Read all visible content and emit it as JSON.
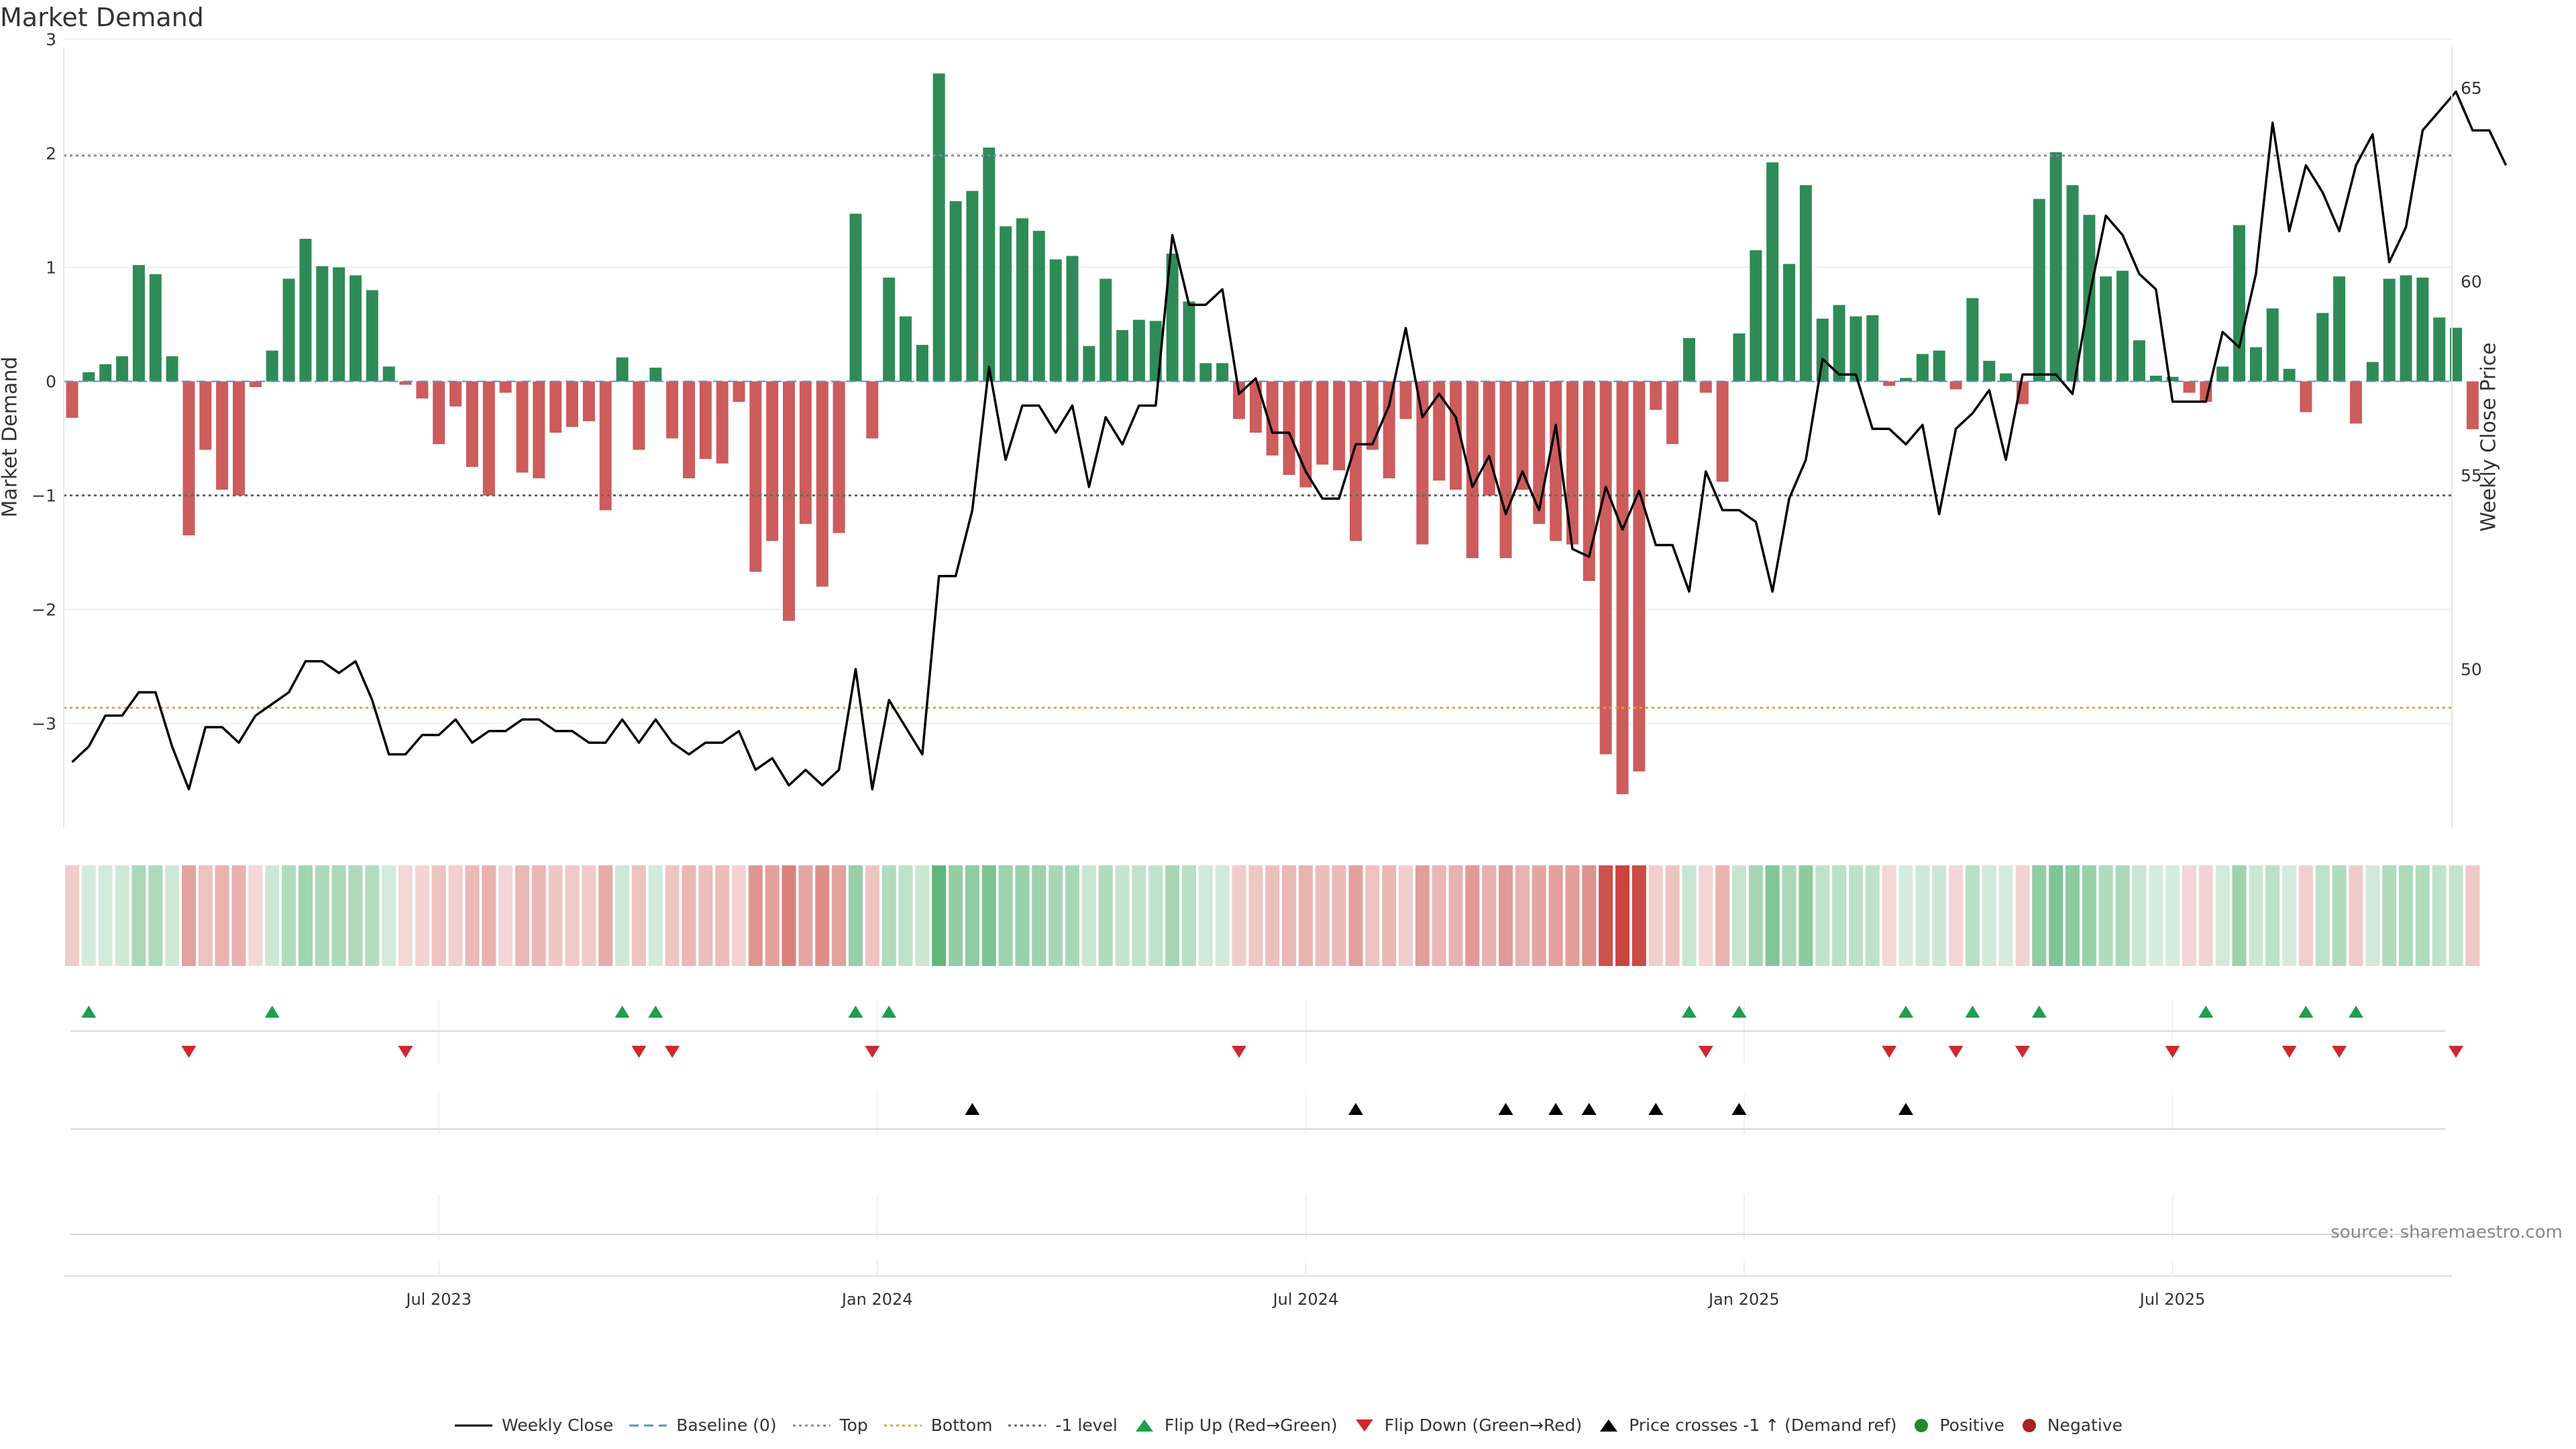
{
  "chart_data": {
    "type": "bar+line",
    "title": "Market Demand",
    "ylabel_left": "Market Demand",
    "ylabel_right": "Weekly Close Price",
    "ylim_left": [
      -3.95,
      3.05
    ],
    "ylim_right": [
      45.8,
      66.4
    ],
    "left_ticks": [
      "3",
      "2",
      "1",
      "0",
      "−1",
      "−2",
      "−3"
    ],
    "left_tick_values": [
      3,
      2,
      1,
      0,
      -1,
      -2,
      -3
    ],
    "right_ticks": [
      "65",
      "60",
      "55",
      "50"
    ],
    "right_tick_values": [
      65,
      60,
      55,
      50
    ],
    "reference_lines": {
      "top": 1.98,
      "bottom_price": 49.0,
      "minus_one": -1.0,
      "baseline": 0
    },
    "x_ticks": [
      "Jul 2023",
      "Jan 2024",
      "Jul 2024",
      "Jan 2025",
      "Jul 2025"
    ],
    "x_tick_index": [
      22,
      48.3,
      74,
      100.3,
      126
    ],
    "demand": [
      -0.32,
      0.08,
      0.15,
      0.22,
      1.02,
      0.94,
      0.22,
      -1.35,
      -0.6,
      -0.95,
      -1.0,
      -0.05,
      0.27,
      0.9,
      1.25,
      1.01,
      1.0,
      0.93,
      0.8,
      0.13,
      -0.03,
      -0.15,
      -0.55,
      -0.22,
      -0.75,
      -1.0,
      -0.1,
      -0.8,
      -0.85,
      -0.45,
      -0.4,
      -0.35,
      -1.13,
      0.21,
      -0.6,
      0.12,
      -0.5,
      -0.85,
      -0.68,
      -0.72,
      -0.18,
      -1.67,
      -1.4,
      -2.1,
      -1.25,
      -1.8,
      -1.33,
      1.47,
      -0.5,
      0.91,
      0.57,
      0.32,
      2.7,
      1.58,
      1.67,
      2.05,
      1.36,
      1.43,
      1.32,
      1.07,
      1.1,
      0.31,
      0.9,
      0.45,
      0.54,
      0.53,
      1.12,
      0.7,
      0.16,
      0.16,
      -0.33,
      -0.45,
      -0.65,
      -0.82,
      -0.93,
      -0.73,
      -0.78,
      -1.4,
      -0.6,
      -0.85,
      -0.33,
      -1.43,
      -0.87,
      -0.95,
      -1.55,
      -1.0,
      -1.55,
      -0.95,
      -1.25,
      -1.4,
      -1.43,
      -1.75,
      -3.27,
      -3.62,
      -3.42,
      -0.25,
      -0.55,
      0.38,
      -0.1,
      -0.88,
      0.42,
      1.15,
      1.92,
      1.03,
      1.72,
      0.55,
      0.67,
      0.57,
      0.58,
      -0.04,
      0.03,
      0.24,
      0.27,
      -0.07,
      0.73,
      0.18,
      0.07,
      -0.2,
      1.6,
      2.01,
      1.72,
      1.46,
      0.92,
      0.97,
      0.36,
      0.05,
      0.04,
      -0.1,
      -0.18,
      0.13,
      1.37,
      0.3,
      0.64,
      0.11,
      -0.27,
      0.6,
      0.92,
      -0.37,
      0.17,
      0.9,
      0.93,
      0.91,
      0.56,
      0.47,
      -0.42
    ],
    "price": [
      47.6,
      48.0,
      48.8,
      48.8,
      49.4,
      49.4,
      48.0,
      46.9,
      48.5,
      48.5,
      48.1,
      48.8,
      49.1,
      49.4,
      50.2,
      50.2,
      49.9,
      50.2,
      49.2,
      47.8,
      47.8,
      48.3,
      48.3,
      48.7,
      48.1,
      48.4,
      48.4,
      48.7,
      48.7,
      48.4,
      48.4,
      48.1,
      48.1,
      48.7,
      48.1,
      48.7,
      48.1,
      47.8,
      48.1,
      48.1,
      48.4,
      47.4,
      47.7,
      47.0,
      47.4,
      47.0,
      47.4,
      50.0,
      46.9,
      49.2,
      48.5,
      47.8,
      52.4,
      52.4,
      54.1,
      57.8,
      55.4,
      56.8,
      56.8,
      56.1,
      56.8,
      54.7,
      56.5,
      55.8,
      56.8,
      56.8,
      61.2,
      59.4,
      59.4,
      59.8,
      57.1,
      57.5,
      56.1,
      56.1,
      55.1,
      54.4,
      54.4,
      55.8,
      55.8,
      56.8,
      58.8,
      56.5,
      57.1,
      56.5,
      54.7,
      55.5,
      54.0,
      55.1,
      54.1,
      56.3,
      53.1,
      52.9,
      54.7,
      53.6,
      54.6,
      53.2,
      53.2,
      52.0,
      55.1,
      54.1,
      54.1,
      53.8,
      52.0,
      54.4,
      55.4,
      58.0,
      57.6,
      57.6,
      56.2,
      56.2,
      55.8,
      56.3,
      54.0,
      56.2,
      56.6,
      57.2,
      55.4,
      57.6,
      57.6,
      57.6,
      57.1,
      59.6,
      61.7,
      61.2,
      60.2,
      59.8,
      56.9,
      56.9,
      56.9,
      58.7,
      58.3,
      60.2,
      64.1,
      61.3,
      63.0,
      62.3,
      61.3,
      63.0,
      63.8,
      60.5,
      61.4,
      63.9,
      64.4,
      64.9,
      63.9,
      63.9,
      63.0
    ],
    "flip_up_index": [
      1,
      12,
      33,
      35,
      47,
      49,
      97,
      100,
      110,
      114,
      118,
      128,
      134,
      137
    ],
    "flip_down_index": [
      7,
      20,
      34,
      36,
      48,
      70,
      98,
      109,
      113,
      117,
      126,
      133,
      136,
      143
    ],
    "cross_index": [
      54,
      77,
      86,
      89,
      91,
      95,
      100,
      110
    ],
    "source": "source: sharemaestro.com",
    "legend": [
      "Weekly Close",
      "Baseline (0)",
      "Top",
      "Bottom",
      "-1 level",
      "Flip Up (Red→Green)",
      "Flip Down (Green→Red)",
      "Price crosses -1 ↑ (Demand ref)",
      "Positive",
      "Negative"
    ],
    "colors": {
      "positive": "#2e8b57",
      "negative": "#cd5c5c",
      "line": "#000000",
      "top": "#8a7fc0",
      "bottom": "#e0a040",
      "minus_one": "#666666",
      "flip_up": "#1e9e50",
      "flip_down": "#d0282c",
      "legend_positive": "#1f8a2a",
      "legend_negative": "#a82020",
      "baseline": "#5b8fc7"
    }
  }
}
